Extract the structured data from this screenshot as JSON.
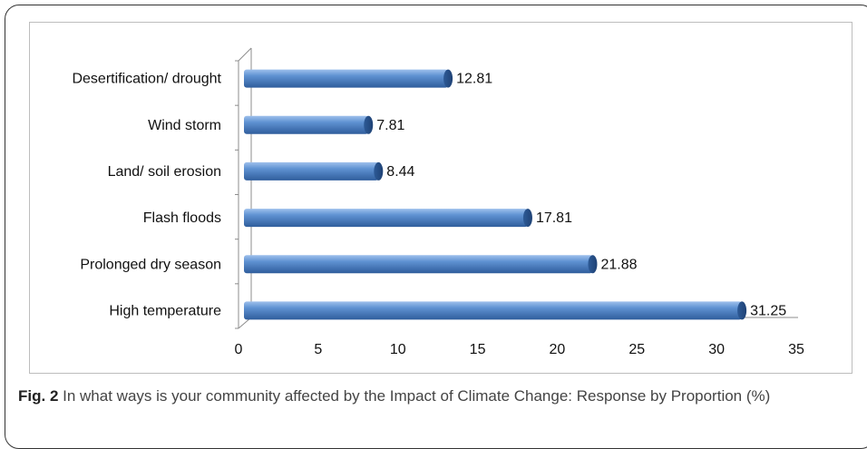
{
  "chart_data": {
    "type": "bar",
    "orientation": "horizontal",
    "categories": [
      "Desertification/ drought",
      "Wind storm",
      "Land/ soil erosion",
      "Flash floods",
      "Prolonged dry season",
      "High temperature"
    ],
    "values": [
      12.81,
      7.81,
      8.44,
      17.81,
      21.88,
      31.25
    ],
    "value_labels": [
      "12.81",
      "7.81",
      "8.44",
      "17.81",
      "21.88",
      "31.25"
    ],
    "xlim": [
      0,
      35
    ],
    "xticks": [
      "0",
      "5",
      "10",
      "15",
      "20",
      "25",
      "30",
      "35"
    ],
    "bar_color": "#4a7ebb",
    "grid": false,
    "legend": "none"
  },
  "caption": {
    "label": "Fig. 2",
    "text": " In what ways is your community affected by the Impact of Climate Change: Response by Proportion (%)"
  }
}
